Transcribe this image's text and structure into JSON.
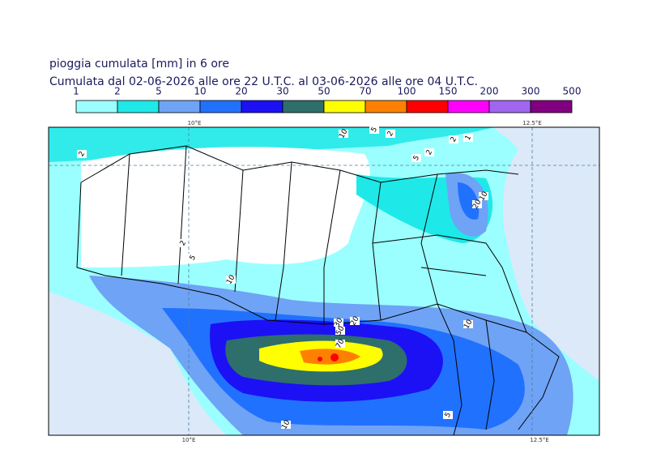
{
  "header": {
    "title": "pioggia cumulata [mm] in 6 ore",
    "subtitle": "Cumulata dal 02-06-2026 alle ore 22 U.T.C. al 03-06-2026 alle ore 04 U.T.C."
  },
  "colorbar": {
    "levels": [
      1,
      2,
      5,
      10,
      20,
      30,
      50,
      70,
      100,
      150,
      200,
      300,
      500
    ],
    "colors": [
      "#9bffff",
      "#1ee8e8",
      "#6fa3f5",
      "#2171ff",
      "#1c10f5",
      "#2e6e6b",
      "#ffff00",
      "#ff8000",
      "#ff0000",
      "#ff00ff",
      "#a066f0",
      "#800080"
    ]
  },
  "map": {
    "top_labels": [
      "10°E",
      "12.5°E"
    ],
    "bottom_labels": [
      "10°E",
      "12.5°E"
    ],
    "contour_labels": [
      "10",
      "5",
      "2",
      "2",
      "5",
      "2",
      "2",
      "1",
      "10",
      "20",
      "2",
      "5",
      "10",
      "30",
      "50",
      "20",
      "70",
      "10",
      "5",
      "10"
    ]
  }
}
